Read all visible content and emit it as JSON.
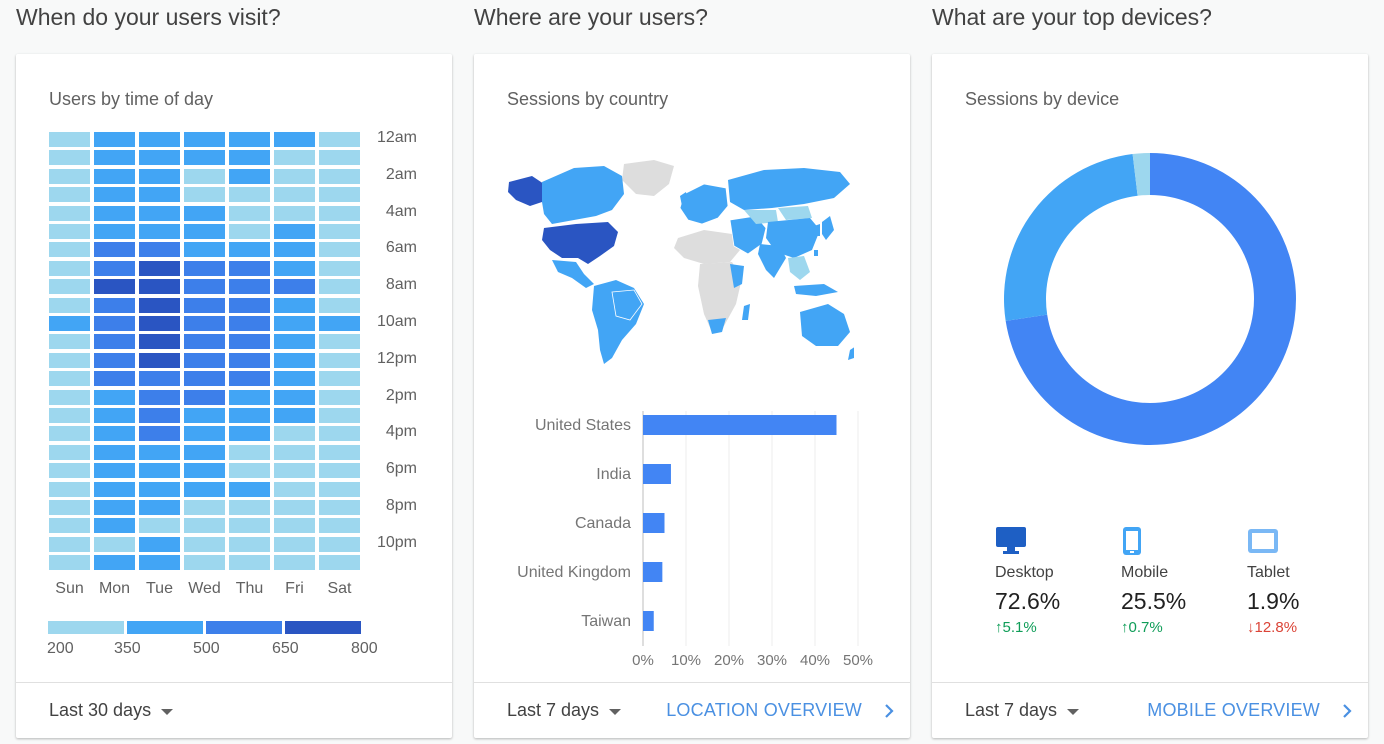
{
  "sections": {
    "visit_title": "When do your users visit?",
    "where_title": "Where are your users?",
    "devices_title": "What are your top devices?"
  },
  "heatmap_card": {
    "title": "Users by time of day",
    "range": "Last 30 days",
    "days": [
      "Sun",
      "Mon",
      "Tue",
      "Wed",
      "Thu",
      "Fri",
      "Sat"
    ],
    "time_labels": [
      "12am",
      "2am",
      "4am",
      "6am",
      "8am",
      "10am",
      "12pm",
      "2pm",
      "4pm",
      "6pm",
      "8pm",
      "10pm"
    ],
    "legend": [
      "200",
      "350",
      "500",
      "650",
      "800"
    ],
    "colors": [
      "#9dd7ee",
      "#42a5f5",
      "#3d7fea",
      "#2a55c2"
    ],
    "levels": [
      [
        0,
        1,
        1,
        1,
        1,
        1,
        0
      ],
      [
        0,
        1,
        1,
        1,
        1,
        0,
        0
      ],
      [
        0,
        1,
        1,
        0,
        1,
        0,
        0
      ],
      [
        0,
        1,
        1,
        0,
        0,
        0,
        0
      ],
      [
        0,
        1,
        1,
        1,
        0,
        0,
        0
      ],
      [
        0,
        1,
        1,
        1,
        0,
        1,
        0
      ],
      [
        0,
        2,
        2,
        1,
        1,
        1,
        0
      ],
      [
        0,
        2,
        3,
        2,
        2,
        1,
        0
      ],
      [
        0,
        3,
        3,
        2,
        2,
        2,
        0
      ],
      [
        0,
        2,
        3,
        2,
        2,
        1,
        0
      ],
      [
        1,
        2,
        3,
        2,
        2,
        1,
        1
      ],
      [
        0,
        2,
        3,
        2,
        2,
        1,
        0
      ],
      [
        0,
        2,
        3,
        2,
        2,
        1,
        0
      ],
      [
        0,
        2,
        2,
        2,
        2,
        1,
        0
      ],
      [
        0,
        1,
        2,
        2,
        1,
        1,
        0
      ],
      [
        0,
        1,
        2,
        1,
        1,
        1,
        0
      ],
      [
        0,
        1,
        2,
        1,
        1,
        0,
        0
      ],
      [
        0,
        1,
        1,
        1,
        0,
        0,
        0
      ],
      [
        0,
        1,
        1,
        1,
        0,
        0,
        0
      ],
      [
        0,
        1,
        1,
        1,
        1,
        0,
        0
      ],
      [
        0,
        1,
        1,
        0,
        0,
        0,
        0
      ],
      [
        0,
        1,
        0,
        0,
        0,
        0,
        0
      ],
      [
        0,
        0,
        1,
        0,
        0,
        0,
        0
      ],
      [
        0,
        1,
        1,
        0,
        0,
        0,
        0
      ]
    ]
  },
  "country_card": {
    "title": "Sessions by country",
    "range": "Last 7 days",
    "link": "LOCATION OVERVIEW",
    "map_colors": {
      "top": "#2a55c2",
      "mid": "#42a5f5",
      "light": "#9dd7ee",
      "none": "#dddddd"
    }
  },
  "chart_data": {
    "type": "bar",
    "orientation": "horizontal",
    "categories": [
      "United States",
      "India",
      "Canada",
      "United Kingdom",
      "Taiwan"
    ],
    "values": [
      45,
      6.5,
      5,
      4.5,
      2.5
    ],
    "x_ticks": [
      "0%",
      "10%",
      "20%",
      "30%",
      "40%",
      "50%"
    ],
    "xlim": [
      0,
      50
    ],
    "grid": true,
    "color": "#4285f4"
  },
  "device_card": {
    "title": "Sessions by device",
    "range": "Last 7 days",
    "link": "MOBILE OVERVIEW",
    "donut": {
      "values": [
        72.6,
        25.5,
        1.9
      ],
      "colors": [
        "#4285f4",
        "#42a5f5",
        "#9dd7ee"
      ]
    },
    "devices": [
      {
        "label": "Desktop",
        "pct": "72.6%",
        "change": "5.1%",
        "dir": "up",
        "icon": "desktop-icon",
        "color": "#1e5fc4"
      },
      {
        "label": "Mobile",
        "pct": "25.5%",
        "change": "0.7%",
        "dir": "up",
        "icon": "mobile-icon",
        "color": "#42a5f5"
      },
      {
        "label": "Tablet",
        "pct": "1.9%",
        "change": "12.8%",
        "dir": "down",
        "icon": "tablet-icon",
        "color": "#7ab8f5"
      }
    ]
  }
}
